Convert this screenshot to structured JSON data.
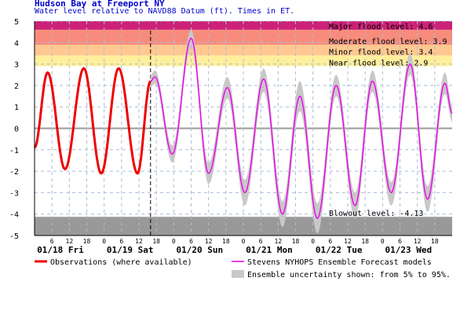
{
  "title": "Hudson Bay at Freeport NY",
  "subtitle": "Water level relative to NAVD88 Datum (ft). Times in ET.",
  "colors": {
    "major": "#cc2277",
    "moderate": "#f78c7c",
    "minor": "#ffc890",
    "near": "#ffef9c",
    "blowout": "#999999",
    "observations": "#ee0000",
    "forecast": "#ee00ee",
    "uncertainty": "#c8c8c8",
    "grid": "#a9bdd6",
    "text": "#000000"
  },
  "chart_data": {
    "type": "line",
    "title": "Hudson Bay at Freeport NY",
    "subtitle": "Water level relative to NAVD88 Datum (ft). Times in ET.",
    "ylabel": "",
    "xlabel": "",
    "ylim": [
      -5,
      5
    ],
    "xlim_hours": [
      0,
      144
    ],
    "grid": true,
    "y_ticks": [
      5,
      4,
      3,
      2,
      1,
      0,
      -1,
      -2,
      -3,
      -4,
      -5
    ],
    "hour_ticks": [
      {
        "h": 6,
        "label": "6"
      },
      {
        "h": 12,
        "label": "12"
      },
      {
        "h": 18,
        "label": "18"
      },
      {
        "h": 24,
        "label": "0"
      },
      {
        "h": 30,
        "label": "6"
      },
      {
        "h": 36,
        "label": "12"
      },
      {
        "h": 42,
        "label": "18"
      },
      {
        "h": 48,
        "label": "0"
      },
      {
        "h": 54,
        "label": "6"
      },
      {
        "h": 60,
        "label": "12"
      },
      {
        "h": 66,
        "label": "18"
      },
      {
        "h": 72,
        "label": "0"
      },
      {
        "h": 78,
        "label": "6"
      },
      {
        "h": 84,
        "label": "12"
      },
      {
        "h": 90,
        "label": "18"
      },
      {
        "h": 96,
        "label": "0"
      },
      {
        "h": 102,
        "label": "6"
      },
      {
        "h": 108,
        "label": "12"
      },
      {
        "h": 114,
        "label": "18"
      },
      {
        "h": 120,
        "label": "0"
      },
      {
        "h": 126,
        "label": "6"
      },
      {
        "h": 132,
        "label": "12"
      },
      {
        "h": 138,
        "label": "18"
      }
    ],
    "day_labels": [
      {
        "h": 0,
        "label": "01/18 Fri"
      },
      {
        "h": 24,
        "label": "01/19 Sat"
      },
      {
        "h": 48,
        "label": "01/20 Sun"
      },
      {
        "h": 72,
        "label": "01/21 Mon"
      },
      {
        "h": 96,
        "label": "01/22 Tue"
      },
      {
        "h": 120,
        "label": "01/23 Wed"
      }
    ],
    "now_hour": 40,
    "flood_levels": [
      {
        "name": "Major flood level: 4.6",
        "from": 4.6,
        "to": 5
      },
      {
        "name": "Moderate flood level: 3.9",
        "from": 3.9,
        "to": 4.6
      },
      {
        "name": "Minor flood level: 3.4",
        "from": 3.4,
        "to": 3.9
      },
      {
        "name": "Near flood level: 2.9",
        "from": 2.9,
        "to": 3.4
      }
    ],
    "blowout": {
      "name": "Blowout level: -4.13",
      "value": -4.13
    },
    "series": [
      {
        "name": "Observations (where available)",
        "x": [
          0,
          4.5,
          10.5,
          17,
          23,
          29,
          35.5,
          40
        ],
        "values": [
          -0.9,
          2.6,
          -1.9,
          2.8,
          -2.1,
          2.8,
          -2.1,
          2.2
        ]
      },
      {
        "name": "Stevens NYHOPS Ensemble Forecast models",
        "x": [
          40,
          41.5,
          47.5,
          54,
          60,
          66.5,
          72.5,
          79,
          85.5,
          91.5,
          97.5,
          104,
          110.5,
          116.5,
          123,
          129.5,
          135.5,
          141.5,
          144
        ],
        "values": [
          2.2,
          2.4,
          -1.2,
          4.2,
          -2.1,
          1.9,
          -3.0,
          2.3,
          -4.0,
          1.5,
          -4.2,
          2.0,
          -3.6,
          2.2,
          -3.0,
          3.0,
          -3.3,
          2.1,
          0.7
        ]
      },
      {
        "name": "Ensemble uncertainty shown: from 5% to 95%.",
        "x": [
          40,
          41.5,
          47.5,
          54,
          60,
          66.5,
          72.5,
          79,
          85.5,
          91.5,
          97.5,
          104,
          110.5,
          116.5,
          123,
          129.5,
          135.5,
          141.5,
          144
        ],
        "low": [
          1.9,
          2.1,
          -1.6,
          3.8,
          -2.6,
          1.4,
          -3.6,
          1.7,
          -4.6,
          0.8,
          -4.9,
          1.5,
          -4.2,
          1.7,
          -3.6,
          2.5,
          -3.9,
          1.6,
          0.3
        ],
        "high": [
          2.5,
          2.7,
          -0.8,
          4.6,
          -1.6,
          2.4,
          -2.4,
          2.8,
          -3.4,
          2.2,
          -3.5,
          2.5,
          -3.0,
          2.7,
          -2.5,
          3.5,
          -2.7,
          2.6,
          1.1
        ]
      }
    ]
  },
  "legend": {
    "observations": "Observations (where available)",
    "forecast": "Stevens NYHOPS Ensemble Forecast models",
    "uncertainty": "Ensemble uncertainty shown: from 5% to 95%."
  }
}
